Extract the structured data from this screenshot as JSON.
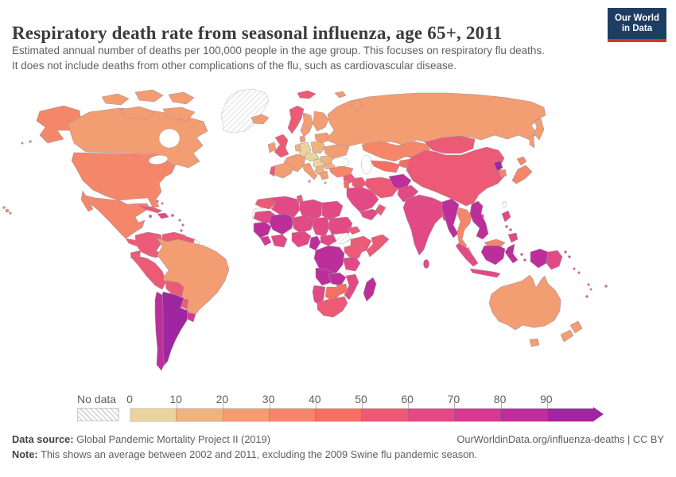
{
  "header": {
    "title": "Respiratory death rate from seasonal influenza, age 65+, 2011",
    "subtitle1": "Estimated annual number of deaths per 100,000 people in the age group. This focuses on respiratory flu deaths.",
    "subtitle2": "It does not include deaths from other complications of the flu, such as cardiovascular disease.",
    "logo_line1": "Our World",
    "logo_line2": "in Data",
    "logo_bg": "#1d3d63",
    "logo_accent": "#d2352b"
  },
  "legend": {
    "no_data_label": "No data",
    "tick_labels": [
      "0",
      "10",
      "20",
      "30",
      "40",
      "50",
      "60",
      "70",
      "80",
      "90"
    ]
  },
  "footer": {
    "source_label": "Data source:",
    "source": "Global Pandemic Mortality Project II (2019)",
    "url": "OurWorldinData.org/influenza-deaths | CC BY",
    "note_label": "Note:",
    "note": "This shows an average between 2002 and 2011, excluding the 2009 Swine flu pandemic season."
  },
  "chart_data": {
    "type": "choropleth_map",
    "title": "Respiratory death rate from seasonal influenza, age 65+, 2011",
    "unit": "deaths per 100,000 people in the age group",
    "year": 2011,
    "legend_position": "bottom",
    "no_data_style": "hatched",
    "scale": {
      "bins": [
        "0-10",
        "10-20",
        "20-30",
        "30-40",
        "40-50",
        "50-60",
        "60-70",
        "70-80",
        "80-90",
        "90+"
      ],
      "colors": [
        "#EBD3A0",
        "#F1B37D",
        "#F39D72",
        "#F4876A",
        "#F37062",
        "#EC5A75",
        "#E24A86",
        "#D43A92",
        "#BC2F9A",
        "#9E26A0"
      ]
    },
    "country_bins": {
      "hawaii": 3,
      "alaska": 3,
      "canada": 2,
      "canadian-arctic": 2,
      "greenland": "no_data",
      "usa": 3,
      "mexico": 3,
      "guatemala": 5,
      "honduras": 3,
      "panama": 5,
      "cuba": 5,
      "hispaniola": 6,
      "jamaica": 5,
      "puerto-rico": 5,
      "bahamas": 5,
      "lesser-antilles": 5,
      "colombia": 5,
      "venezuela": 5,
      "guyana-suriname": 5,
      "french-guiana": "no_data",
      "ecuador": 5,
      "peru": 5,
      "brazil": 2,
      "bolivia": 5,
      "paraguay": 5,
      "uruguay": 7,
      "argentina": 9,
      "chile": 8,
      "iceland": 2,
      "svalbard": 5,
      "franz-josef": 2,
      "norway": 5,
      "sweden": 2,
      "finland": 2,
      "denmark": 2,
      "uk": 5,
      "ireland": 2,
      "france": 2,
      "spain": 2,
      "portugal": 5,
      "germany": 0,
      "benelux": 1,
      "poland": 1,
      "czech-austria": 0,
      "hungary": 0,
      "italy": 2,
      "balkans": 1,
      "greece": 2,
      "romania": 1,
      "bulgaria": 1,
      "ukraine": 2,
      "belarus-baltics": 2,
      "russia": 2,
      "kazakhstan": 3,
      "uzbekistan": 4,
      "kyrgyzstan": 4,
      "turkey": 3,
      "syria": 5,
      "israel-jordan": 4,
      "iraq": 5,
      "saudi-arabia": 6,
      "yemen": 6,
      "oman": 5,
      "iran": 5,
      "afghanistan": 8,
      "pakistan": 6,
      "india": 6,
      "bangladesh": 6,
      "sri-lanka": 6,
      "china": 5,
      "mongolia": 5,
      "north-korea": 9,
      "south-korea": 3,
      "japan": 3,
      "taiwan": "no_data",
      "myanmar": 8,
      "thailand": 3,
      "vietnam": 8,
      "malaysia": 3,
      "philippines": 6,
      "indonesia": 6,
      "indonesia-borneo": 8,
      "indonesia-sulawesi": 8,
      "indonesia-papua": 8,
      "papua-new-guinea": 6,
      "solomon-islands": 5,
      "vanuatu": 5,
      "fiji": 5,
      "new-caledonia": 5,
      "australia": 2,
      "new-zealand": 2,
      "morocco": 5,
      "western-sahara": "no_data",
      "algeria": 6,
      "tunisia": 5,
      "libya": 6,
      "egypt": 6,
      "mauritania": 6,
      "mali": 8,
      "niger": 6,
      "chad": 6,
      "sudan": 6,
      "south-sudan": "no_data",
      "eritrea": 5,
      "ethiopia": 5,
      "somalia": 5,
      "senegal": 8,
      "sierra-leone": 7,
      "ghana": 6,
      "nigeria": 6,
      "cameroon": 8,
      "central-african-republic": 6,
      "drc": 8,
      "kenya": 5,
      "tanzania": 6,
      "angola": 8,
      "zambia": 8,
      "mozambique": 6,
      "zimbabwe": 4,
      "botswana": 4,
      "namibia": 6,
      "south-africa": 5,
      "madagascar": 8
    }
  }
}
